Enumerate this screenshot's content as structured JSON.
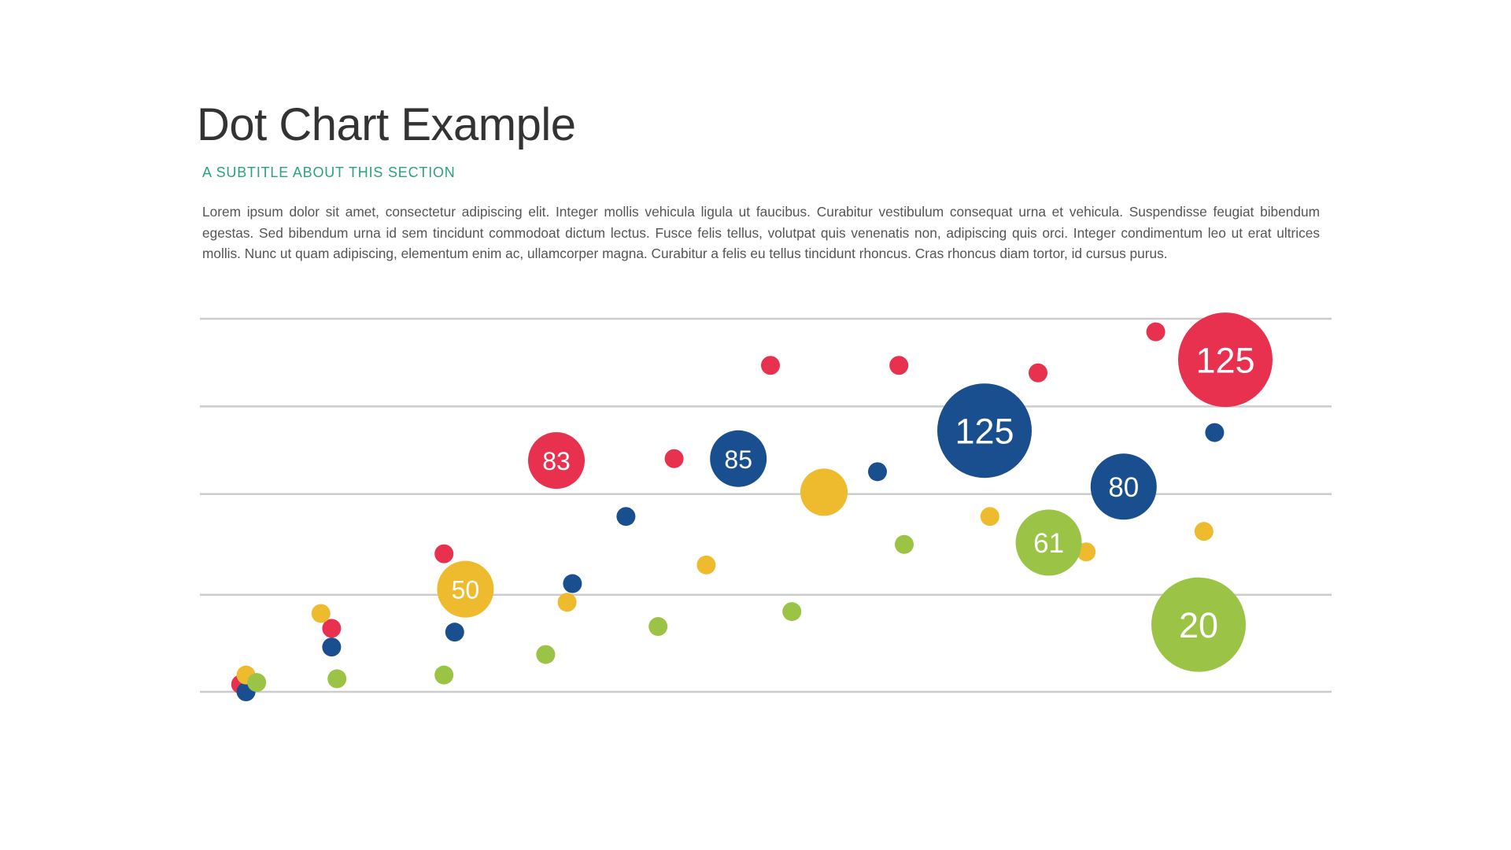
{
  "page": {
    "title": "Dot Chart Example",
    "subtitle": "A SUBTITLE ABOUT THIS SECTION",
    "body": "Lorem ipsum dolor sit amet, consectetur adipiscing elit. Integer mollis vehicula ligula ut faucibus. Curabitur vestibulum consequat urna et vehicula. Suspendisse feugiat bibendum egestas. Sed bibendum urna id sem tincidunt commodoat dictum lectus. Fusce felis tellus, volutpat quis venenatis non, adipiscing quis orci. Integer condimentum leo ut erat ultrices mollis. Nunc ut quam adipiscing, elementum enim ac, ullamcorper magna. Curabitur a felis eu tellus tincidunt rhoncus. Cras rhoncus diam tortor, id cursus purus."
  },
  "colors": {
    "red": "#e8314f",
    "blue": "#1a4f8f",
    "yellow": "#eebb2f",
    "green": "#9bc447",
    "grid": "#cccccc"
  },
  "chart_data": {
    "type": "scatter",
    "title": "",
    "xlabel": "",
    "ylabel": "",
    "xlim": [
      0,
      100
    ],
    "ylim": [
      0,
      100
    ],
    "gridlines_y": [
      0,
      26,
      53,
      76.5,
      100
    ],
    "grid": true,
    "series": [
      {
        "color": "red",
        "points": [
          {
            "x": 3,
            "y": 2,
            "size": 1
          },
          {
            "x": 11.5,
            "y": 17,
            "size": 1
          },
          {
            "x": 22,
            "y": 37,
            "size": 1
          },
          {
            "x": 32.5,
            "y": 62,
            "size": 3,
            "label": "83"
          },
          {
            "x": 43.5,
            "y": 62.5,
            "size": 1
          },
          {
            "x": 52.5,
            "y": 87.5,
            "size": 1
          },
          {
            "x": 64.5,
            "y": 87.5,
            "size": 1
          },
          {
            "x": 77.5,
            "y": 85.5,
            "size": 1
          },
          {
            "x": 88.5,
            "y": 96.5,
            "size": 1
          },
          {
            "x": 95,
            "y": 89,
            "size": 5,
            "label": "125"
          }
        ]
      },
      {
        "color": "blue",
        "points": [
          {
            "x": 3.5,
            "y": 0,
            "size": 1
          },
          {
            "x": 11.5,
            "y": 12,
            "size": 1
          },
          {
            "x": 23,
            "y": 16,
            "size": 1
          },
          {
            "x": 34,
            "y": 29,
            "size": 1
          },
          {
            "x": 39,
            "y": 47,
            "size": 1
          },
          {
            "x": 49.5,
            "y": 62.5,
            "size": 3,
            "label": "85"
          },
          {
            "x": 62.5,
            "y": 59,
            "size": 1
          },
          {
            "x": 72.5,
            "y": 70,
            "size": 5,
            "label": "125"
          },
          {
            "x": 85.5,
            "y": 55,
            "size": 3.5,
            "label": "80"
          },
          {
            "x": 94,
            "y": 69.5,
            "size": 1
          }
        ]
      },
      {
        "color": "yellow",
        "points": [
          {
            "x": 3.5,
            "y": 4.5,
            "size": 1
          },
          {
            "x": 10.5,
            "y": 21,
            "size": 1
          },
          {
            "x": 24,
            "y": 27.5,
            "size": 3,
            "label": "50"
          },
          {
            "x": 33.5,
            "y": 24,
            "size": 1
          },
          {
            "x": 46.5,
            "y": 34,
            "size": 1
          },
          {
            "x": 57.5,
            "y": 53.5,
            "size": 2.5
          },
          {
            "x": 73,
            "y": 47,
            "size": 1
          },
          {
            "x": 82,
            "y": 37.5,
            "size": 1
          },
          {
            "x": 93,
            "y": 43,
            "size": 1
          }
        ]
      },
      {
        "color": "green",
        "points": [
          {
            "x": 4.5,
            "y": 2.5,
            "size": 1
          },
          {
            "x": 12,
            "y": 3.5,
            "size": 1
          },
          {
            "x": 22,
            "y": 4.5,
            "size": 1
          },
          {
            "x": 31.5,
            "y": 10,
            "size": 1
          },
          {
            "x": 42,
            "y": 17.5,
            "size": 1
          },
          {
            "x": 54.5,
            "y": 21.5,
            "size": 1
          },
          {
            "x": 65,
            "y": 39.5,
            "size": 1
          },
          {
            "x": 78.5,
            "y": 40,
            "size": 3.5,
            "label": "61"
          },
          {
            "x": 92.5,
            "y": 18,
            "size": 5,
            "label": "20"
          }
        ]
      }
    ]
  }
}
